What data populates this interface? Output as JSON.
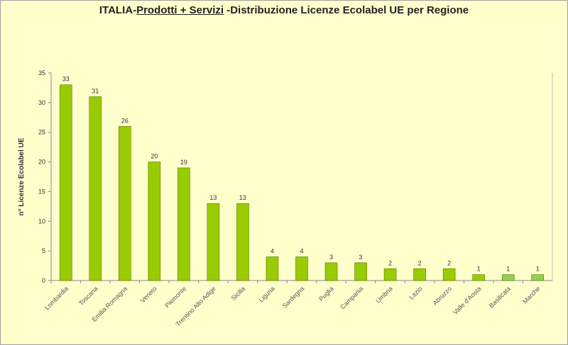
{
  "chart_data": {
    "type": "bar",
    "title_parts": [
      "ITALIA-",
      "Prodotti + Servizi",
      " -Distribuzione Licenze Ecolabel UE per Regione"
    ],
    "xlabel": "",
    "ylabel": "n° Licenze  Ecolabel  UE",
    "ylim": [
      0,
      35
    ],
    "yticks": [
      0,
      5,
      10,
      15,
      20,
      25,
      30,
      35
    ],
    "categories": [
      "Lombardia",
      "Toscana",
      "Emilia Romagna",
      "Veneto",
      "Piemonte",
      "Trentino Alto Adige",
      "Sicilia",
      "Liguria",
      "Sardegna",
      "Puglia",
      "Campania",
      "Umbria",
      "Lazio",
      "Abruzzo",
      "Valle d'Aosta",
      "Basilicata",
      "Marche"
    ],
    "values": [
      33,
      31,
      26,
      20,
      19,
      13,
      13,
      4,
      4,
      3,
      3,
      2,
      2,
      2,
      1,
      1,
      1
    ],
    "colors": {
      "bar": "#99cc00",
      "bar_alt": "#92d050",
      "plot_bg": "#ffffcc"
    },
    "alt_color_categories": [
      "Basilicata",
      "Marche"
    ],
    "grid": false,
    "data_labels": true
  }
}
